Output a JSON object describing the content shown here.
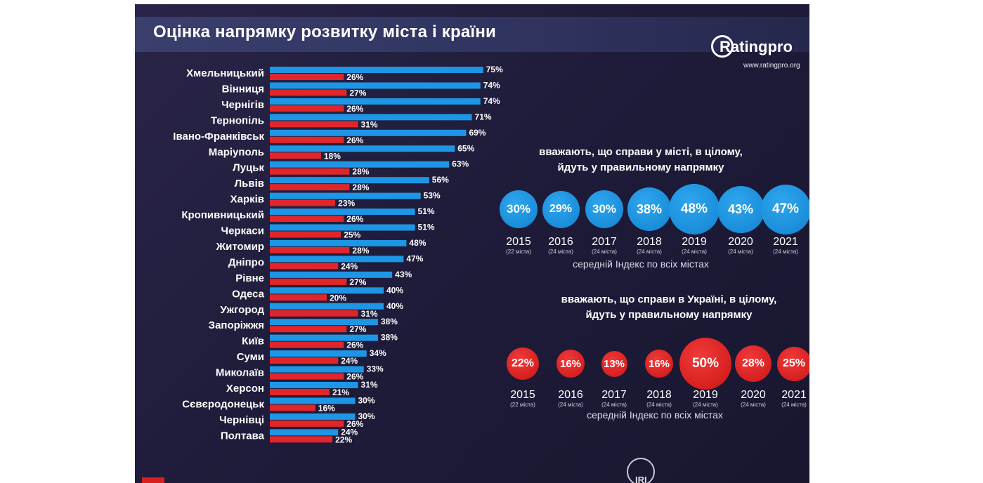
{
  "poster": {
    "title": "Оцінка напрямку розвитку міста і країни",
    "logo_name": "Ratingpro",
    "logo_url": "www.ratingpro.org",
    "footer_logo": "IRI"
  },
  "colors": {
    "background": "#1f1c3b",
    "blue_series": "#1e96e6",
    "red_series": "#e0262a",
    "text": "#ffffff"
  },
  "city_section": {
    "title_line1": "вважають, що справи у місті, в цілому,",
    "title_line2": "йдуть у правильному напрямку",
    "avg_label": "середній Індекс по всіх містах"
  },
  "country_section": {
    "title_line1": "вважають, що справи в Україні, в цілому,",
    "title_line2": "йдуть у правильному напрямку",
    "avg_label": "середній Індекс по всіх містах"
  },
  "chart_data": [
    {
      "type": "bar",
      "orientation": "horizontal",
      "categories": [
        "Хмельницький",
        "Вінниця",
        "Чернігів",
        "Тернопіль",
        "Івано-Франківськ",
        "Маріуполь",
        "Луцьк",
        "Львів",
        "Харків",
        "Кропивницький",
        "Черкаси",
        "Житомир",
        "Дніпро",
        "Рівне",
        "Одеса",
        "Ужгород",
        "Запоріжжя",
        "Київ",
        "Суми",
        "Миколаїв",
        "Херсон",
        "Сєвєродонецьк",
        "Чернівці",
        "Полтава"
      ],
      "series": [
        {
          "color": "#1e96e6",
          "values": [
            75,
            74,
            74,
            71,
            69,
            65,
            63,
            56,
            53,
            51,
            51,
            48,
            47,
            43,
            40,
            40,
            38,
            38,
            34,
            33,
            31,
            30,
            30,
            24
          ]
        },
        {
          "color": "#e0262a",
          "values": [
            26,
            27,
            26,
            31,
            26,
            18,
            28,
            28,
            23,
            26,
            25,
            28,
            24,
            27,
            20,
            31,
            27,
            26,
            24,
            26,
            21,
            16,
            26,
            22
          ]
        }
      ],
      "value_suffix": "%"
    },
    {
      "type": "scatter",
      "style": "bubbles",
      "color": "#1e96e6",
      "title": "вважають, що справи у місті, в цілому, йдуть у правильному напрямку",
      "x": [
        "2015",
        "2016",
        "2017",
        "2018",
        "2019",
        "2020",
        "2021"
      ],
      "notes": [
        "(22 міста)",
        "(24 міста)",
        "(24 міста)",
        "(24 міста)",
        "(24 міста)",
        "(24 міста)",
        "(24 міста)"
      ],
      "values": [
        30,
        29,
        30,
        38,
        48,
        43,
        47
      ],
      "labels": [
        "30%",
        "29%",
        "30%",
        "38%",
        "48%",
        "43%",
        "47%"
      ]
    },
    {
      "type": "scatter",
      "style": "bubbles",
      "color": "#e0262a",
      "title": "вважають, що справи в Україні, в цілому, йдуть у правильному напрямку",
      "x": [
        "2015",
        "2016",
        "2017",
        "2018",
        "2019",
        "2020",
        "2021"
      ],
      "notes": [
        "(22 міста)",
        "(24 міста)",
        "(24 міста)",
        "(24 міста)",
        "(24 міста)",
        "(24 міста)",
        "(24 міста)"
      ],
      "values": [
        22,
        16,
        13,
        16,
        50,
        28,
        25
      ],
      "labels": [
        "22%",
        "16%",
        "13%",
        "16%",
        "50%",
        "28%",
        "25%"
      ]
    }
  ]
}
